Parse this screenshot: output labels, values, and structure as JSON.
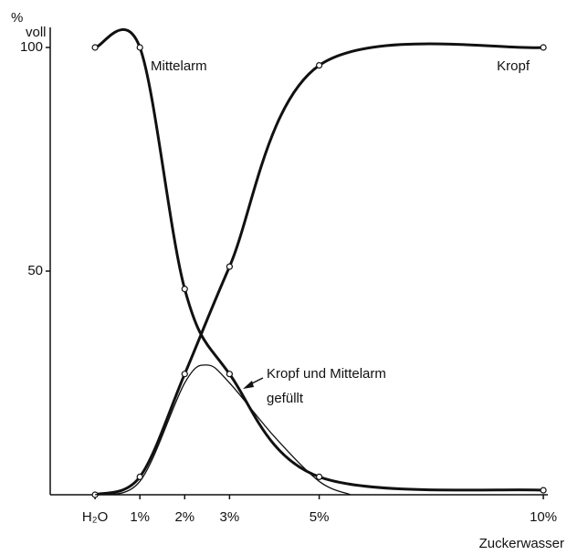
{
  "chart_data": {
    "type": "line",
    "y_unit": "%",
    "y_label": "voll",
    "x_label": "Zuckerwasser",
    "xlim": [
      -1,
      10.1
    ],
    "ylim": [
      0,
      100
    ],
    "xticks": [
      {
        "value": 0,
        "label": "H₂O"
      },
      {
        "value": 1,
        "label": "1%"
      },
      {
        "value": 2,
        "label": "2%"
      },
      {
        "value": 3,
        "label": "3%"
      },
      {
        "value": 5,
        "label": "5%"
      },
      {
        "value": 10,
        "label": "10%"
      }
    ],
    "yticks": [
      50,
      100
    ],
    "series": [
      {
        "name": "Mittelarm",
        "color": "#111111",
        "width": 3,
        "markers": true,
        "x": [
          0,
          1,
          2,
          3,
          5,
          10
        ],
        "values": [
          100,
          100,
          46,
          27,
          4,
          1
        ]
      },
      {
        "name": "Kropf",
        "color": "#111111",
        "width": 3,
        "markers": true,
        "x": [
          0,
          1,
          2,
          3,
          5,
          10
        ],
        "values": [
          0,
          4,
          27,
          51,
          96,
          100
        ]
      },
      {
        "name": "Kropf und Mittelarm gefüllt",
        "color": "#111111",
        "width": 1.3,
        "markers": false,
        "x": [
          0,
          1,
          2,
          2.5,
          3,
          4,
          5,
          5.7
        ],
        "values": [
          0,
          3,
          25,
          29,
          25,
          13,
          3,
          0
        ]
      }
    ],
    "annotations": [
      "Mittelarm",
      "Kropf",
      "Kropf und Mittelarm",
      "gefüllt"
    ]
  }
}
